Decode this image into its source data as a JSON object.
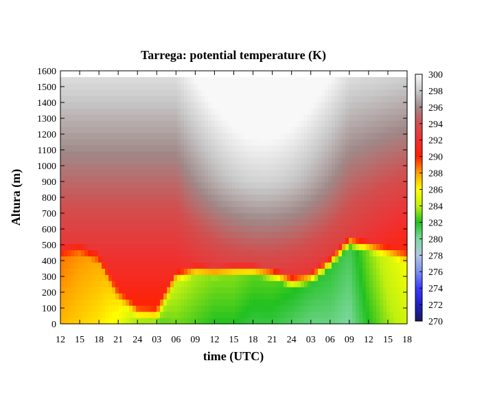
{
  "chart_data": {
    "type": "heatmap",
    "title": "Tarrega: potential temperature (K)",
    "xlabel": "time (UTC)",
    "ylabel": "Altura (m)",
    "x_tick_labels": [
      "12",
      "15",
      "18",
      "21",
      "24",
      "03",
      "06",
      "09",
      "12",
      "15",
      "18",
      "21",
      "24",
      "03",
      "06",
      "09",
      "12",
      "15",
      "18"
    ],
    "y_ticks": [
      0,
      100,
      200,
      300,
      400,
      500,
      600,
      700,
      800,
      900,
      1000,
      1100,
      1200,
      1300,
      1400,
      1500,
      1600
    ],
    "ylim": [
      0,
      1600
    ],
    "colorbar": {
      "ticks": [
        270,
        272,
        274,
        276,
        278,
        280,
        282,
        284,
        286,
        288,
        290,
        292,
        294,
        296,
        298,
        300
      ],
      "range": [
        270,
        300
      ],
      "stops": [
        {
          "value": 270,
          "color": "#1a1a5a"
        },
        {
          "value": 272,
          "color": "#2020c8"
        },
        {
          "value": 274,
          "color": "#3a3aff"
        },
        {
          "value": 276,
          "color": "#7a90f0"
        },
        {
          "value": 278,
          "color": "#b0c8e0"
        },
        {
          "value": 280,
          "color": "#80d8a0"
        },
        {
          "value": 282,
          "color": "#20c020"
        },
        {
          "value": 284,
          "color": "#c0f010"
        },
        {
          "value": 286,
          "color": "#ffff00"
        },
        {
          "value": 288,
          "color": "#ffa000"
        },
        {
          "value": 290,
          "color": "#ff2000"
        },
        {
          "value": 292,
          "color": "#f03030"
        },
        {
          "value": 294,
          "color": "#d05050"
        },
        {
          "value": 296,
          "color": "#a08888"
        },
        {
          "value": 298,
          "color": "#c8c8c8"
        },
        {
          "value": 300,
          "color": "#f8f8f8"
        }
      ]
    },
    "data_top_m": 1560,
    "series": [
      {
        "t": 0,
        "mixed_top_m": 420,
        "mixed_theta_K": 287.5
      },
      {
        "t": 3,
        "mixed_top_m": 440,
        "mixed_theta_K": 287.0
      },
      {
        "t": 6,
        "mixed_top_m": 380,
        "mixed_theta_K": 286.5
      },
      {
        "t": 9,
        "mixed_top_m": 150,
        "mixed_theta_K": 285.5
      },
      {
        "t": 12,
        "mixed_top_m": 30,
        "mixed_theta_K": 283.0
      },
      {
        "t": 15,
        "mixed_top_m": 20,
        "mixed_theta_K": 282.5
      },
      {
        "t": 18,
        "mixed_top_m": 260,
        "mixed_theta_K": 283.0
      },
      {
        "t": 21,
        "mixed_top_m": 300,
        "mixed_theta_K": 282.5
      },
      {
        "t": 24,
        "mixed_top_m": 290,
        "mixed_theta_K": 282.0
      },
      {
        "t": 27,
        "mixed_top_m": 300,
        "mixed_theta_K": 282.0
      },
      {
        "t": 30,
        "mixed_top_m": 300,
        "mixed_theta_K": 281.5
      },
      {
        "t": 33,
        "mixed_top_m": 280,
        "mixed_theta_K": 281.5
      },
      {
        "t": 36,
        "mixed_top_m": 230,
        "mixed_theta_K": 281.0
      },
      {
        "t": 39,
        "mixed_top_m": 250,
        "mixed_theta_K": 280.5
      },
      {
        "t": 42,
        "mixed_top_m": 350,
        "mixed_theta_K": 280.5
      },
      {
        "t": 45,
        "mixed_top_m": 480,
        "mixed_theta_K": 280.0
      },
      {
        "t": 48,
        "mixed_top_m": 450,
        "mixed_theta_K": 282.0
      },
      {
        "t": 51,
        "mixed_top_m": 420,
        "mixed_theta_K": 283.5
      },
      {
        "t": 54,
        "mixed_top_m": 380,
        "mixed_theta_K": 284.5
      }
    ]
  }
}
